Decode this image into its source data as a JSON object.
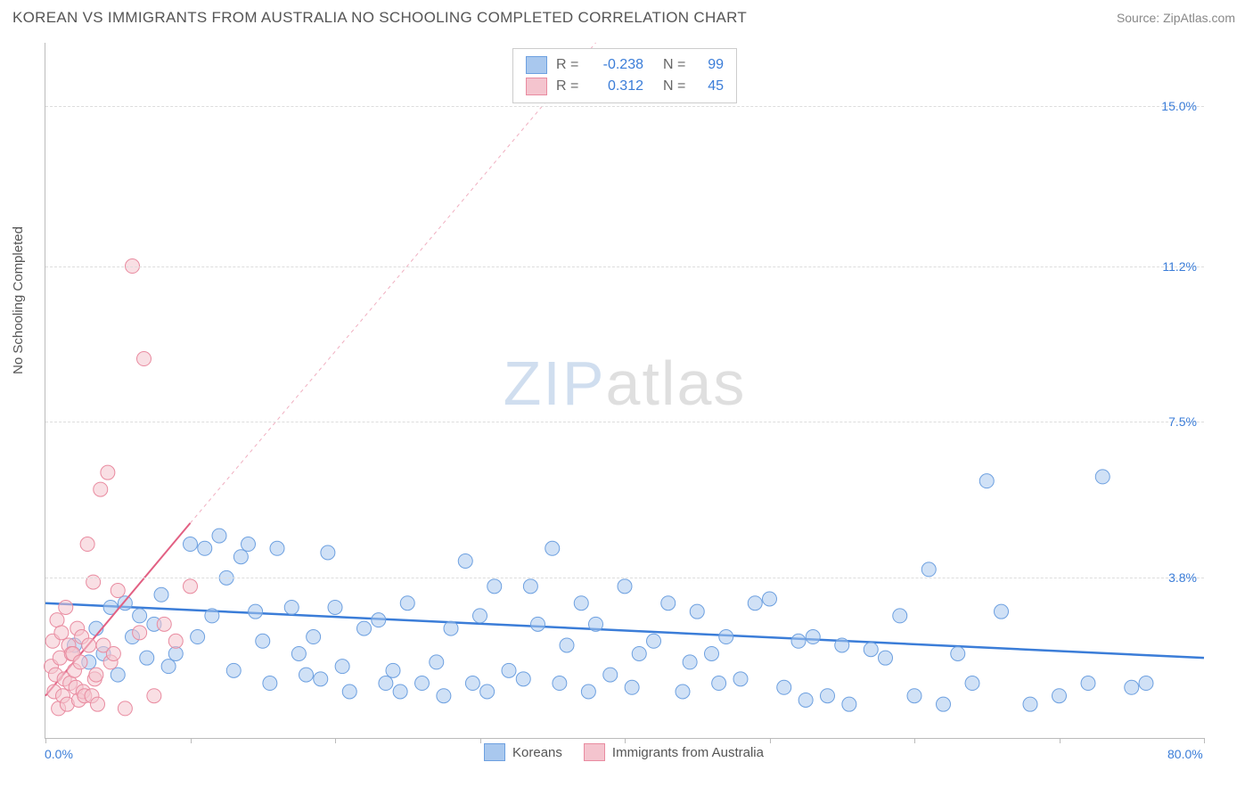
{
  "title": "KOREAN VS IMMIGRANTS FROM AUSTRALIA NO SCHOOLING COMPLETED CORRELATION CHART",
  "source": "Source: ZipAtlas.com",
  "y_axis_label": "No Schooling Completed",
  "watermark": {
    "zip": "ZIP",
    "atlas": "atlas"
  },
  "chart": {
    "type": "scatter",
    "xlim": [
      0,
      80
    ],
    "ylim": [
      0,
      16.5
    ],
    "x_ticks": [
      0,
      10,
      20,
      30,
      40,
      50,
      60,
      70,
      80
    ],
    "y_gridlines": [
      3.8,
      7.5,
      11.2,
      15.0
    ],
    "x_labels": [
      {
        "value": 0,
        "text": "0.0%",
        "color": "#3b7dd8"
      },
      {
        "value": 80,
        "text": "80.0%",
        "color": "#3b7dd8"
      }
    ],
    "y_labels": [
      {
        "value": 3.8,
        "text": "3.8%",
        "color": "#3b7dd8"
      },
      {
        "value": 7.5,
        "text": "7.5%",
        "color": "#3b7dd8"
      },
      {
        "value": 11.2,
        "text": "11.2%",
        "color": "#3b7dd8"
      },
      {
        "value": 15.0,
        "text": "15.0%",
        "color": "#3b7dd8"
      }
    ],
    "background_color": "#ffffff",
    "grid_color": "#dddddd",
    "axis_color": "#bbbbbb",
    "marker_radius": 8,
    "marker_opacity": 0.55,
    "series": [
      {
        "name": "Koreans",
        "fill": "#a9c8ee",
        "stroke": "#6da0e0",
        "trend": {
          "x1": 0,
          "y1": 3.2,
          "x2": 80,
          "y2": 1.9,
          "dashed_extension": false,
          "stroke": "#3b7dd8",
          "width": 2.5
        },
        "points": [
          [
            2,
            2.2
          ],
          [
            3,
            1.8
          ],
          [
            3.5,
            2.6
          ],
          [
            4,
            2.0
          ],
          [
            4.5,
            3.1
          ],
          [
            5,
            1.5
          ],
          [
            5.5,
            3.2
          ],
          [
            6,
            2.4
          ],
          [
            6.5,
            2.9
          ],
          [
            7,
            1.9
          ],
          [
            7.5,
            2.7
          ],
          [
            8,
            3.4
          ],
          [
            8.5,
            1.7
          ],
          [
            9,
            2.0
          ],
          [
            10,
            4.6
          ],
          [
            10.5,
            2.4
          ],
          [
            11,
            4.5
          ],
          [
            11.5,
            2.9
          ],
          [
            12,
            4.8
          ],
          [
            12.5,
            3.8
          ],
          [
            13,
            1.6
          ],
          [
            13.5,
            4.3
          ],
          [
            14,
            4.6
          ],
          [
            14.5,
            3.0
          ],
          [
            15,
            2.3
          ],
          [
            15.5,
            1.3
          ],
          [
            16,
            4.5
          ],
          [
            17,
            3.1
          ],
          [
            17.5,
            2.0
          ],
          [
            18,
            1.5
          ],
          [
            18.5,
            2.4
          ],
          [
            19,
            1.4
          ],
          [
            19.5,
            4.4
          ],
          [
            20,
            3.1
          ],
          [
            20.5,
            1.7
          ],
          [
            21,
            1.1
          ],
          [
            22,
            2.6
          ],
          [
            23,
            2.8
          ],
          [
            23.5,
            1.3
          ],
          [
            24,
            1.6
          ],
          [
            24.5,
            1.1
          ],
          [
            25,
            3.2
          ],
          [
            26,
            1.3
          ],
          [
            27,
            1.8
          ],
          [
            27.5,
            1.0
          ],
          [
            28,
            2.6
          ],
          [
            29,
            4.2
          ],
          [
            29.5,
            1.3
          ],
          [
            30,
            2.9
          ],
          [
            30.5,
            1.1
          ],
          [
            31,
            3.6
          ],
          [
            32,
            1.6
          ],
          [
            33,
            1.4
          ],
          [
            33.5,
            3.6
          ],
          [
            34,
            2.7
          ],
          [
            35,
            4.5
          ],
          [
            35.5,
            1.3
          ],
          [
            36,
            2.2
          ],
          [
            37,
            3.2
          ],
          [
            37.5,
            1.1
          ],
          [
            38,
            2.7
          ],
          [
            39,
            1.5
          ],
          [
            40,
            3.6
          ],
          [
            40.5,
            1.2
          ],
          [
            41,
            2.0
          ],
          [
            42,
            2.3
          ],
          [
            43,
            3.2
          ],
          [
            44,
            1.1
          ],
          [
            44.5,
            1.8
          ],
          [
            45,
            3.0
          ],
          [
            46,
            2.0
          ],
          [
            46.5,
            1.3
          ],
          [
            47,
            2.4
          ],
          [
            48,
            1.4
          ],
          [
            49,
            3.2
          ],
          [
            50,
            3.3
          ],
          [
            51,
            1.2
          ],
          [
            52,
            2.3
          ],
          [
            52.5,
            0.9
          ],
          [
            53,
            2.4
          ],
          [
            54,
            1.0
          ],
          [
            55,
            2.2
          ],
          [
            55.5,
            0.8
          ],
          [
            57,
            2.1
          ],
          [
            58,
            1.9
          ],
          [
            59,
            2.9
          ],
          [
            60,
            1.0
          ],
          [
            61,
            4.0
          ],
          [
            62,
            0.8
          ],
          [
            63,
            2.0
          ],
          [
            64,
            1.3
          ],
          [
            65,
            6.1
          ],
          [
            66,
            3.0
          ],
          [
            68,
            0.8
          ],
          [
            70,
            1.0
          ],
          [
            72,
            1.3
          ],
          [
            73,
            6.2
          ],
          [
            75,
            1.2
          ],
          [
            76,
            1.3
          ]
        ]
      },
      {
        "name": "Immigrants from Australia",
        "fill": "#f4c4ce",
        "stroke": "#e98ba0",
        "trend": {
          "x1": 0,
          "y1": 1.0,
          "x2": 10,
          "y2": 5.1,
          "dashed_extension": true,
          "dash_x2": 38,
          "dash_y2": 16.5,
          "stroke": "#e26083",
          "width": 2
        },
        "points": [
          [
            0.4,
            1.7
          ],
          [
            0.5,
            2.3
          ],
          [
            0.6,
            1.1
          ],
          [
            0.7,
            1.5
          ],
          [
            0.8,
            2.8
          ],
          [
            0.9,
            0.7
          ],
          [
            1.0,
            1.9
          ],
          [
            1.1,
            2.5
          ],
          [
            1.2,
            1.0
          ],
          [
            1.3,
            1.4
          ],
          [
            1.4,
            3.1
          ],
          [
            1.5,
            0.8
          ],
          [
            1.6,
            2.2
          ],
          [
            1.7,
            1.3
          ],
          [
            1.8,
            2.0
          ],
          [
            1.9,
            2.0
          ],
          [
            2.0,
            1.6
          ],
          [
            2.1,
            1.2
          ],
          [
            2.2,
            2.6
          ],
          [
            2.3,
            0.9
          ],
          [
            2.4,
            1.8
          ],
          [
            2.5,
            2.4
          ],
          [
            2.6,
            1.1
          ],
          [
            2.7,
            1.0
          ],
          [
            2.9,
            4.6
          ],
          [
            3.0,
            2.2
          ],
          [
            3.2,
            1.0
          ],
          [
            3.3,
            3.7
          ],
          [
            3.4,
            1.4
          ],
          [
            3.5,
            1.5
          ],
          [
            3.6,
            0.8
          ],
          [
            3.8,
            5.9
          ],
          [
            4.0,
            2.2
          ],
          [
            4.3,
            6.3
          ],
          [
            4.5,
            1.8
          ],
          [
            4.7,
            2.0
          ],
          [
            5.0,
            3.5
          ],
          [
            5.5,
            0.7
          ],
          [
            6.0,
            11.2
          ],
          [
            6.5,
            2.5
          ],
          [
            6.8,
            9.0
          ],
          [
            7.5,
            1.0
          ],
          [
            8.2,
            2.7
          ],
          [
            9.0,
            2.3
          ],
          [
            10.0,
            3.6
          ]
        ]
      }
    ],
    "legend_top": [
      {
        "swatch_fill": "#a9c8ee",
        "swatch_stroke": "#6da0e0",
        "r": "-0.238",
        "n": "99"
      },
      {
        "swatch_fill": "#f4c4ce",
        "swatch_stroke": "#e98ba0",
        "r": "0.312",
        "n": "45"
      }
    ],
    "legend_bottom": [
      {
        "label": "Koreans",
        "swatch_fill": "#a9c8ee",
        "swatch_stroke": "#6da0e0"
      },
      {
        "label": "Immigrants from Australia",
        "swatch_fill": "#f4c4ce",
        "swatch_stroke": "#e98ba0"
      }
    ],
    "stat_labels": {
      "r": "R =",
      "n": "N ="
    }
  }
}
